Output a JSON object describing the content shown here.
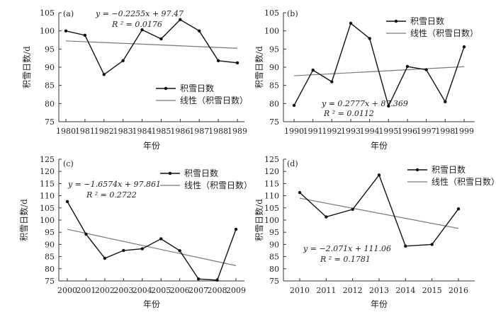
{
  "chart_data": [
    {
      "type": "line",
      "panel_label": "(a)",
      "x": [
        1980,
        1981,
        1982,
        1983,
        1984,
        1985,
        1986,
        1987,
        1988,
        1989
      ],
      "x_ticks": [
        "1980",
        "1981",
        "1982",
        "1983",
        "1984",
        "1985",
        "1986",
        "1987",
        "1988",
        "1989"
      ],
      "series": [
        {
          "name": "积雪日数",
          "values": [
            100.0,
            98.8,
            88.0,
            91.8,
            100.3,
            97.8,
            103.1,
            100.0,
            91.8,
            91.2
          ]
        }
      ],
      "trend": {
        "name": "线性（积雪日数）",
        "slope": -0.2255,
        "intercept": 97.47
      },
      "equation": "y = −0.2255x + 97.47",
      "r2": "R ² = 0.0176",
      "ylim": [
        75,
        105
      ],
      "yticks": [
        75,
        80,
        85,
        90,
        95,
        100,
        105
      ],
      "xlabel": "年份",
      "ylabel": "积雪日数/d",
      "legend_position": "inside-lower-right"
    },
    {
      "type": "line",
      "panel_label": "(b)",
      "x": [
        1990,
        1991,
        1992,
        1993,
        1994,
        1995,
        1996,
        1997,
        1998,
        1999
      ],
      "x_ticks": [
        "1990",
        "1991",
        "1992",
        "1993",
        "1994",
        "1995",
        "1996",
        "1997",
        "1998",
        "1999"
      ],
      "series": [
        {
          "name": "积雪日数",
          "values": [
            79.5,
            89.2,
            86.0,
            102.1,
            97.9,
            79.3,
            90.2,
            89.3,
            80.5,
            95.6
          ]
        }
      ],
      "trend": {
        "name": "线性（积雪日数）",
        "slope": 0.2777,
        "intercept": 87.369
      },
      "equation": "y = 0.2777x + 87.369",
      "r2": "R ² = 0.0112",
      "ylim": [
        75,
        105
      ],
      "yticks": [
        75,
        80,
        85,
        90,
        95,
        100,
        105
      ],
      "xlabel": "年份",
      "ylabel": "积雪日数/d",
      "legend_position": "top-right"
    },
    {
      "type": "line",
      "panel_label": "(c)",
      "x": [
        2000,
        2001,
        2002,
        2003,
        2004,
        2005,
        2006,
        2007,
        2008,
        2009
      ],
      "x_ticks": [
        "2000",
        "2001",
        "2002",
        "2003",
        "2004",
        "2005",
        "2006",
        "2007",
        "2008",
        "2009"
      ],
      "series": [
        {
          "name": "积雪日数",
          "values": [
            107.6,
            94.2,
            84.3,
            87.5,
            88.2,
            92.3,
            87.4,
            75.8,
            75.3,
            96.2
          ]
        }
      ],
      "trend": {
        "name": "线性（积雪日数）",
        "slope": -1.6574,
        "intercept": 97.861
      },
      "equation": "y = −1.6574x + 97.861",
      "r2": "R ² = 0.2722",
      "ylim": [
        75,
        125
      ],
      "yticks": [
        75,
        80,
        85,
        90,
        95,
        100,
        105,
        110,
        115,
        120,
        125
      ],
      "xlabel": "年份",
      "ylabel": "积雪日数/d",
      "legend_position": "top-right"
    },
    {
      "type": "line",
      "panel_label": "(d)",
      "x": [
        2010,
        2011,
        2012,
        2013,
        2014,
        2015,
        2016
      ],
      "x_ticks": [
        "2010",
        "2011",
        "2012",
        "2013",
        "2014",
        "2015",
        "2016"
      ],
      "series": [
        {
          "name": "积雪日数",
          "values": [
            111.3,
            101.3,
            104.4,
            118.5,
            89.3,
            90.0,
            104.6
          ]
        }
      ],
      "trend": {
        "name": "线性（积雪日数）",
        "slope": -2.071,
        "intercept": 111.06
      },
      "equation": "y = −2.071x + 111.06",
      "r2": "R ² = 0.1781",
      "ylim": [
        75,
        125
      ],
      "yticks": [
        75,
        80,
        85,
        90,
        95,
        100,
        105,
        110,
        115,
        120,
        125
      ],
      "xlabel": "年份",
      "ylabel": "积雪日数/d",
      "legend_position": "top-right"
    }
  ]
}
